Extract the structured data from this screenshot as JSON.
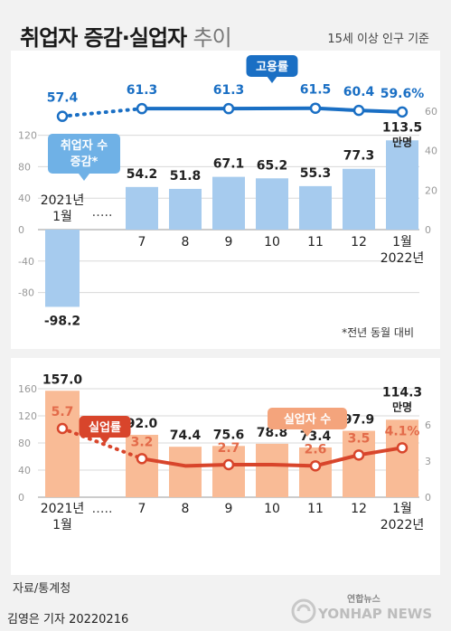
{
  "header": {
    "title_bold": "취업자 증감·실업자",
    "title_light": "추이",
    "basis": "15세 이상 인구 기준"
  },
  "footer": {
    "source": "자료/통계청",
    "credit": "김영은 기자  20220216",
    "logo_text": "연합뉴스",
    "logo_sub": "YONHAP NEWS"
  },
  "colors": {
    "blue_bar": "#a6cbee",
    "blue_line": "#1a6fc4",
    "orange_bar": "#f9bb96",
    "red_line": "#d8452b",
    "red_label": "#e36b4a"
  },
  "chart_data": [
    {
      "type": "bar",
      "categories": [
        "2021년\n1월",
        "7",
        "8",
        "9",
        "10",
        "11",
        "12",
        "1월\n2022년"
      ],
      "series": [
        {
          "name": "취업자 수 증감*",
          "values": [
            -98.2,
            54.2,
            51.8,
            67.1,
            65.2,
            55.3,
            77.3,
            113.5
          ]
        }
      ],
      "value_labels": [
        "-98.2",
        "54.2",
        "51.8",
        "67.1",
        "65.2",
        "55.3",
        "77.3",
        "113.5"
      ],
      "unit_label": "만명",
      "ylim": [
        -120,
        120
      ],
      "left_ticks": [
        "120",
        "80",
        "40",
        "0",
        "-40",
        "-80"
      ],
      "ellipsis": "…..",
      "bar_legend": "취업자 수\n증감*",
      "note": "*전년 동월 대비",
      "overlay": {
        "type": "line",
        "name": "고용률",
        "values": [
          57.4,
          61.3,
          null,
          61.3,
          null,
          61.5,
          60.4,
          59.6
        ],
        "labels": [
          "57.4",
          "61.3",
          "",
          "61.3",
          "",
          "61.5",
          "60.4",
          "59.6%"
        ],
        "ylim": [
          0,
          60
        ],
        "right_ticks": [
          "60",
          "40",
          "20",
          "0"
        ]
      }
    },
    {
      "type": "bar",
      "categories": [
        "2021년\n1월",
        "7",
        "8",
        "9",
        "10",
        "11",
        "12",
        "1월\n2022년"
      ],
      "series": [
        {
          "name": "실업자 수",
          "values": [
            157.0,
            92.0,
            74.4,
            75.6,
            78.8,
            73.4,
            97.9,
            114.3
          ]
        }
      ],
      "value_labels": [
        "157.0",
        "92.0",
        "74.4",
        "75.6",
        "78.8",
        "73.4",
        "97.9",
        "114.3"
      ],
      "unit_label": "만명",
      "ylim": [
        0,
        160
      ],
      "left_ticks": [
        "160",
        "120",
        "80",
        "40",
        "0"
      ],
      "ellipsis": "…..",
      "overlay": {
        "type": "line",
        "name": "실업률",
        "values": [
          5.7,
          3.2,
          2.6,
          2.7,
          2.7,
          2.6,
          3.5,
          4.1
        ],
        "labels": [
          "5.7",
          "3.2",
          "",
          "2.7",
          "",
          "2.6",
          "3.5",
          "4.1%"
        ],
        "ylim": [
          0,
          9
        ],
        "right_ticks": [
          "6",
          "3",
          "0"
        ]
      }
    }
  ]
}
